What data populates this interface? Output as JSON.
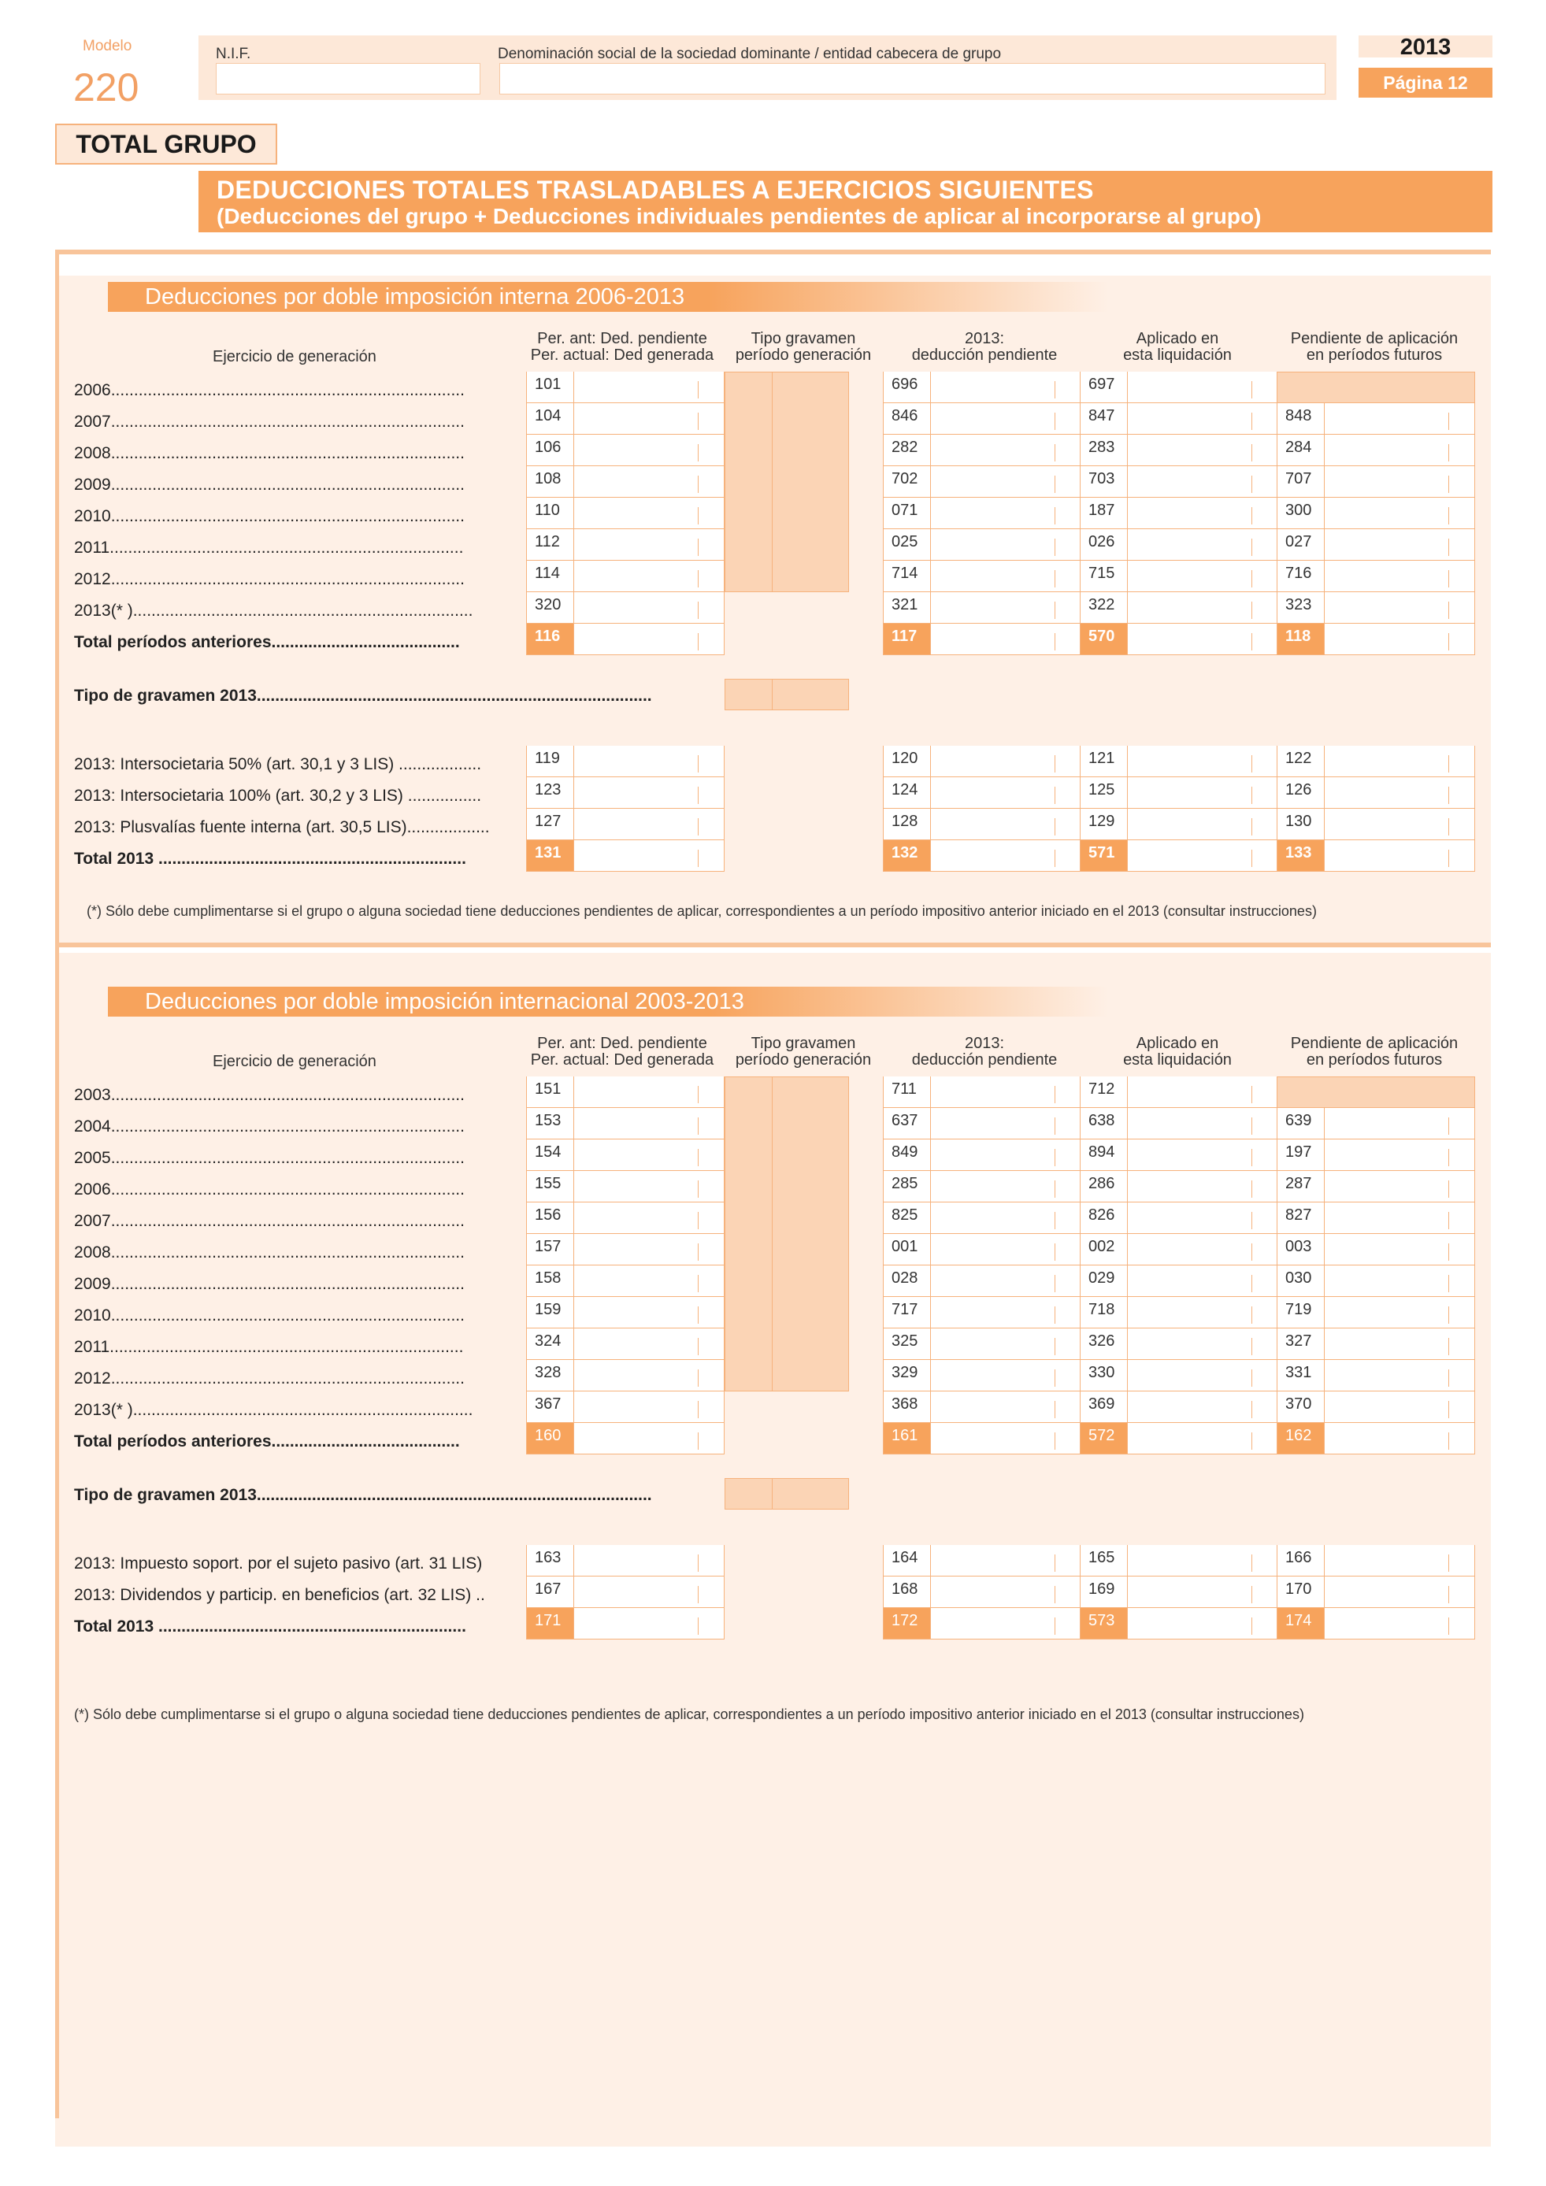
{
  "header": {
    "modelo_label": "Modelo",
    "modelo_number": "220",
    "nif_label": "N.I.F.",
    "nif_value": "",
    "denominacion_label": "Denominación social de la sociedad dominante / entidad cabecera de grupo",
    "denominacion_value": "",
    "year": "2013",
    "pagina": "Página 12"
  },
  "total_grupo": "TOTAL GRUPO",
  "banner": {
    "line1": "DEDUCCIONES TOTALES TRASLADABLES A EJERCICIOS SIGUIENTES",
    "line2": "(Deducciones del grupo + Deducciones individuales pendientes de aplicar al incorporarse al grupo)"
  },
  "columns": {
    "ejercicio": "Ejercicio de generación",
    "c1_l1": "Per. ant: Ded. pendiente",
    "c1_l2": "Per. actual: Ded generada",
    "c2_l1": "Tipo gravamen",
    "c2_l2": "período generación",
    "c3_l1": "2013:",
    "c3_l2": "deducción pendiente",
    "c4_l1": "Aplicado en",
    "c4_l2": "esta liquidación",
    "c5_l1": "Pendiente de aplicación",
    "c5_l2": "en períodos futuros"
  },
  "sec1": {
    "title": "Deducciones por doble imposición interna 2006-2013",
    "rows": [
      {
        "label": "2006.............................................................................",
        "c1": "101",
        "c3": "696",
        "c4": "697",
        "c5": ""
      },
      {
        "label": "2007.............................................................................",
        "c1": "104",
        "c3": "846",
        "c4": "847",
        "c5": "848"
      },
      {
        "label": "2008.............................................................................",
        "c1": "106",
        "c3": "282",
        "c4": "283",
        "c5": "284"
      },
      {
        "label": "2009.............................................................................",
        "c1": "108",
        "c3": "702",
        "c4": "703",
        "c5": "707"
      },
      {
        "label": "2010.............................................................................",
        "c1": "110",
        "c3": "071",
        "c4": "187",
        "c5": "300"
      },
      {
        "label": "2011.............................................................................",
        "c1": "112",
        "c3": "025",
        "c4": "026",
        "c5": "027"
      },
      {
        "label": "2012.............................................................................",
        "c1": "114",
        "c3": "714",
        "c4": "715",
        "c5": "716"
      },
      {
        "label": "2013(* )..........................................................................",
        "c1": "320",
        "c3": "321",
        "c4": "322",
        "c5": "323"
      },
      {
        "label": "Total períodos anteriores.........................................",
        "c1": "116",
        "c3": "117",
        "c4": "570",
        "c5": "118"
      }
    ],
    "tipo_label": "Tipo de gravamen 2013......................................................................................",
    "rows2": [
      {
        "label": "2013: Intersocietaria 50% (art. 30,1 y 3 LIS) ..................",
        "c1": "119",
        "c3": "120",
        "c4": "121",
        "c5": "122"
      },
      {
        "label": "2013: Intersocietaria 100% (art. 30,2 y 3 LIS) ................",
        "c1": "123",
        "c3": "124",
        "c4": "125",
        "c5": "126"
      },
      {
        "label": "2013: Plusvalías fuente interna (art. 30,5 LIS)..................",
        "c1": "127",
        "c3": "128",
        "c4": "129",
        "c5": "130"
      },
      {
        "label": "Total 2013 ...................................................................",
        "c1": "131",
        "c3": "132",
        "c4": "571",
        "c5": "133"
      }
    ],
    "footnote": "(*) Sólo debe cumplimentarse si el grupo o alguna sociedad tiene deducciones pendientes de aplicar, correspondientes a un período impositivo anterior iniciado en el 2013 (consultar instrucciones)"
  },
  "sec2": {
    "title": "Deducciones por doble imposición internacional 2003-2013",
    "rows": [
      {
        "label": "2003.............................................................................",
        "c1": "151",
        "c3": "711",
        "c4": "712",
        "c5": ""
      },
      {
        "label": "2004.............................................................................",
        "c1": "153",
        "c3": "637",
        "c4": "638",
        "c5": "639"
      },
      {
        "label": "2005.............................................................................",
        "c1": "154",
        "c3": "849",
        "c4": "894",
        "c5": "197"
      },
      {
        "label": "2006.............................................................................",
        "c1": "155",
        "c3": "285",
        "c4": "286",
        "c5": "287"
      },
      {
        "label": "2007.............................................................................",
        "c1": "156",
        "c3": "825",
        "c4": "826",
        "c5": "827"
      },
      {
        "label": "2008.............................................................................",
        "c1": "157",
        "c3": "001",
        "c4": "002",
        "c5": "003"
      },
      {
        "label": "2009.............................................................................",
        "c1": "158",
        "c3": "028",
        "c4": "029",
        "c5": "030"
      },
      {
        "label": "2010.............................................................................",
        "c1": "159",
        "c3": "717",
        "c4": "718",
        "c5": "719"
      },
      {
        "label": "2011.............................................................................",
        "c1": "324",
        "c3": "325",
        "c4": "326",
        "c5": "327"
      },
      {
        "label": "2012.............................................................................",
        "c1": "328",
        "c3": "329",
        "c4": "330",
        "c5": "331"
      },
      {
        "label": "2013(* )..........................................................................",
        "c1": "367",
        "c3": "368",
        "c4": "369",
        "c5": "370"
      },
      {
        "label": "Total períodos anteriores.........................................",
        "c1": "160",
        "c3": "161",
        "c4": "572",
        "c5": "162"
      }
    ],
    "tipo_label": "Tipo de gravamen 2013......................................................................................",
    "rows2": [
      {
        "label": "2013: Impuesto soport. por el sujeto pasivo (art. 31 LIS)",
        "c1": "163",
        "c3": "164",
        "c4": "165",
        "c5": "166"
      },
      {
        "label": "2013: Dividendos y particip. en beneficios (art. 32 LIS) ..",
        "c1": "167",
        "c3": "168",
        "c4": "169",
        "c5": "170"
      },
      {
        "label": "Total 2013 ...................................................................",
        "c1": "171",
        "c3": "172",
        "c4": "573",
        "c5": "174"
      }
    ],
    "footnote": "(*) Sólo debe cumplimentarse si el grupo o alguna sociedad tiene deducciones pendientes de aplicar, correspondientes a un período impositivo anterior iniciado en el 2013 (consultar instrucciones)"
  }
}
